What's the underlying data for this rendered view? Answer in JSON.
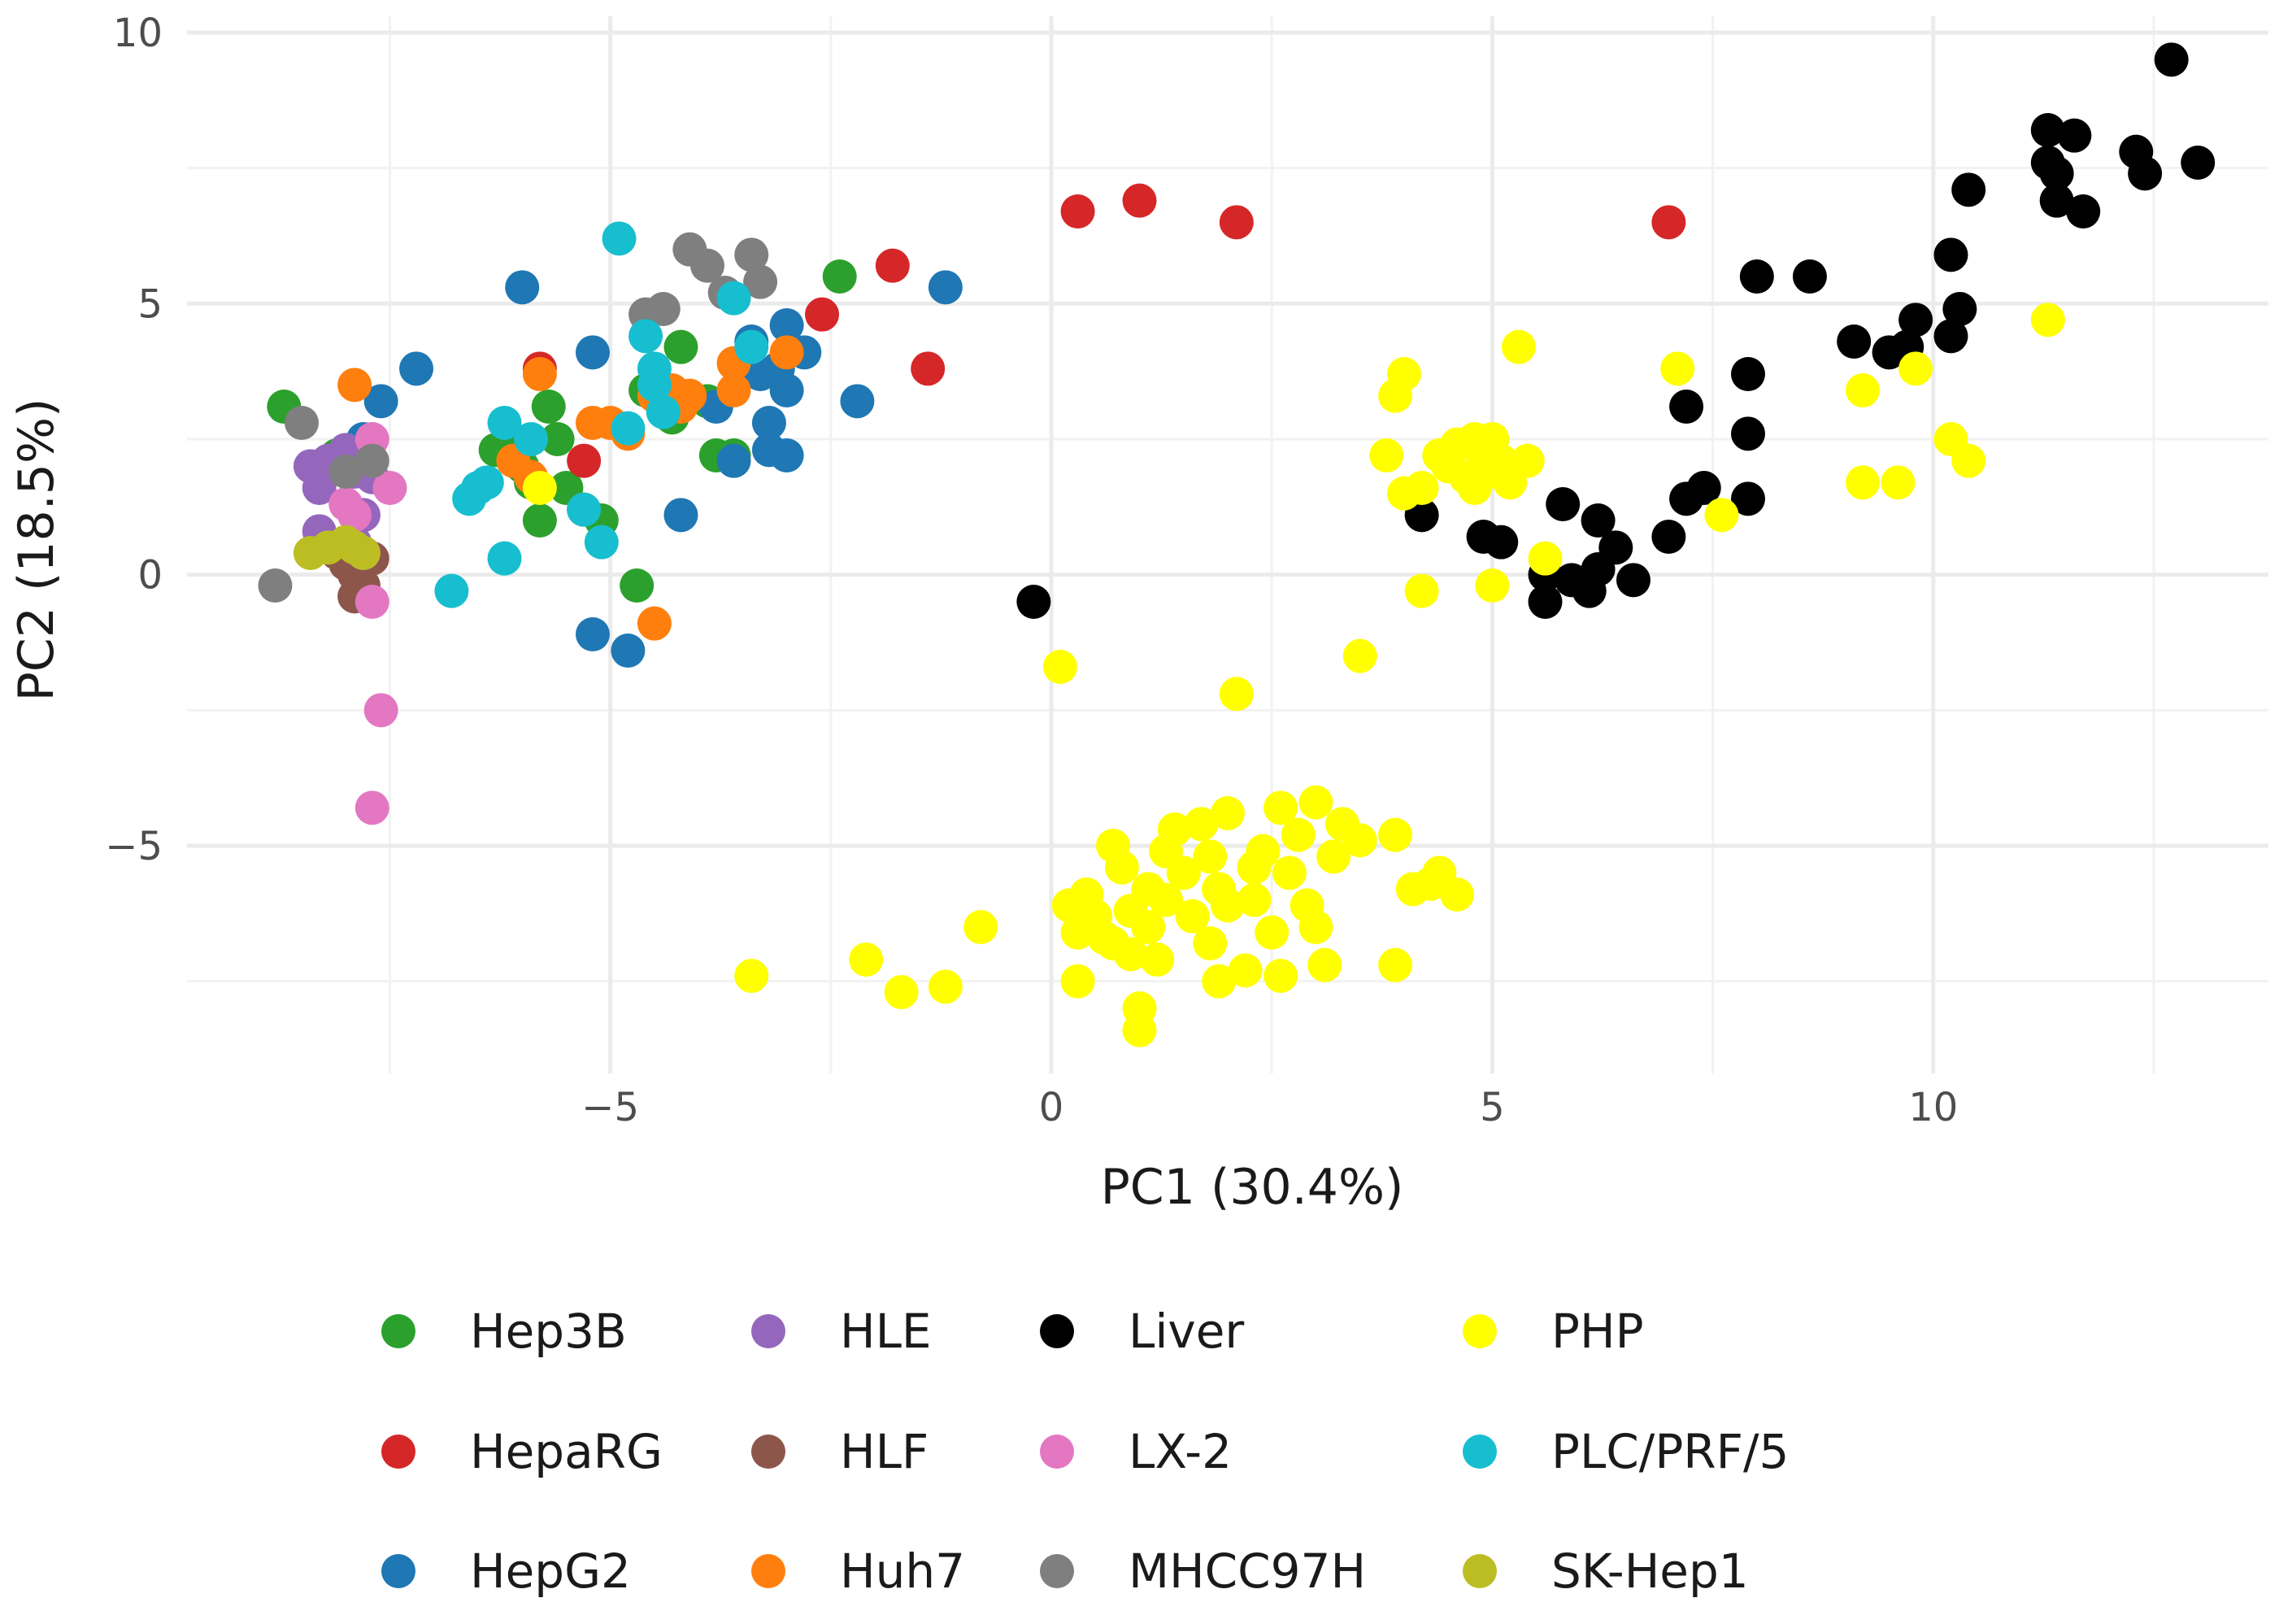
{
  "chart_data": {
    "type": "scatter",
    "title": "",
    "xlabel": "PC1 (30.4%)",
    "ylabel": "PC2 (18.5%)",
    "xlim": [
      -9.8,
      13.8
    ],
    "ylim": [
      -9.2,
      10.3
    ],
    "xticks": [
      -5,
      0,
      5,
      10
    ],
    "xtick_labels": [
      "−5",
      "0",
      "5",
      "10"
    ],
    "yticks": [
      -5,
      0,
      5,
      10
    ],
    "ytick_labels": [
      "−5",
      "0",
      "5",
      "10"
    ],
    "grid": true,
    "legend_position": "bottom",
    "series": [
      {
        "name": "Hep3B",
        "color": "#2ca02c",
        "points": [
          [
            -8.7,
            3.1
          ],
          [
            -8.1,
            2.2
          ],
          [
            -6.3,
            2.3
          ],
          [
            -6.2,
            2.4
          ],
          [
            -6.0,
            2.0
          ],
          [
            -5.9,
            1.7
          ],
          [
            -5.7,
            3.1
          ],
          [
            -5.6,
            2.5
          ],
          [
            -5.5,
            1.6
          ],
          [
            -5.3,
            1.2
          ],
          [
            -5.1,
            1.0
          ],
          [
            -5.8,
            1.0
          ],
          [
            -4.7,
            -0.2
          ],
          [
            -4.6,
            3.4
          ],
          [
            -4.3,
            2.9
          ],
          [
            -4.2,
            4.2
          ],
          [
            -3.9,
            3.2
          ],
          [
            -3.8,
            2.2
          ],
          [
            -3.6,
            2.2
          ],
          [
            -3.5,
            3.8
          ],
          [
            -2.4,
            5.5
          ]
        ]
      },
      {
        "name": "HepaRG",
        "color": "#d62728",
        "points": [
          [
            -5.8,
            3.8
          ],
          [
            -5.3,
            2.1
          ],
          [
            -2.6,
            4.8
          ],
          [
            -1.8,
            5.7
          ],
          [
            -1.4,
            3.8
          ],
          [
            0.3,
            6.7
          ],
          [
            1.0,
            6.9
          ],
          [
            2.1,
            6.5
          ],
          [
            7.0,
            6.5
          ]
        ]
      },
      {
        "name": "HepG2",
        "color": "#1f77b4",
        "points": [
          [
            -7.8,
            2.5
          ],
          [
            -7.6,
            3.2
          ],
          [
            -7.2,
            3.8
          ],
          [
            -6.0,
            5.3
          ],
          [
            -5.2,
            4.1
          ],
          [
            -5.2,
            -1.1
          ],
          [
            -4.8,
            -1.4
          ],
          [
            -4.3,
            3.1
          ],
          [
            -4.2,
            1.1
          ],
          [
            -3.8,
            3.1
          ],
          [
            -3.6,
            2.1
          ],
          [
            -3.4,
            4.3
          ],
          [
            -3.3,
            3.7
          ],
          [
            -3.2,
            2.8
          ],
          [
            -3.2,
            2.3
          ],
          [
            -3.1,
            3.8
          ],
          [
            -3.0,
            4.6
          ],
          [
            -3.0,
            3.4
          ],
          [
            -3.0,
            2.2
          ],
          [
            -2.8,
            4.1
          ],
          [
            -2.2,
            3.2
          ],
          [
            -1.2,
            5.3
          ]
        ]
      },
      {
        "name": "HLE",
        "color": "#9467bd",
        "points": [
          [
            -8.4,
            2.0
          ],
          [
            -8.3,
            1.6
          ],
          [
            -8.2,
            2.1
          ],
          [
            -8.0,
            2.3
          ],
          [
            -7.9,
            1.9
          ],
          [
            -7.8,
            2.2
          ],
          [
            -7.7,
            1.8
          ],
          [
            -7.8,
            1.1
          ],
          [
            -8.3,
            0.8
          ],
          [
            -7.9,
            0.6
          ]
        ]
      },
      {
        "name": "HLF",
        "color": "#8c564b",
        "points": [
          [
            -8.1,
            0.4
          ],
          [
            -8.0,
            0.2
          ],
          [
            -7.9,
            0.0
          ],
          [
            -7.8,
            -0.2
          ],
          [
            -7.9,
            -0.4
          ],
          [
            -8.0,
            0.6
          ],
          [
            -7.7,
            0.3
          ]
        ]
      },
      {
        "name": "Huh7",
        "color": "#ff7f0e",
        "points": [
          [
            -7.9,
            3.5
          ],
          [
            -6.1,
            2.1
          ],
          [
            -5.9,
            1.8
          ],
          [
            -5.8,
            3.7
          ],
          [
            -5.2,
            2.8
          ],
          [
            -5.0,
            2.8
          ],
          [
            -4.8,
            2.6
          ],
          [
            -4.5,
            3.3
          ],
          [
            -4.3,
            3.4
          ],
          [
            -4.2,
            3.1
          ],
          [
            -4.1,
            3.3
          ],
          [
            -3.6,
            3.4
          ],
          [
            -3.6,
            3.9
          ],
          [
            -3.0,
            4.1
          ],
          [
            -4.5,
            -0.9
          ]
        ]
      },
      {
        "name": "Liver",
        "color": "#000000",
        "points": [
          [
            -0.2,
            -0.5
          ],
          [
            4.2,
            1.1
          ],
          [
            4.9,
            0.7
          ],
          [
            5.1,
            0.6
          ],
          [
            5.6,
            0.0
          ],
          [
            5.6,
            -0.5
          ],
          [
            5.8,
            1.3
          ],
          [
            5.9,
            -0.1
          ],
          [
            6.1,
            -0.3
          ],
          [
            6.2,
            0.1
          ],
          [
            6.2,
            1.0
          ],
          [
            6.4,
            0.5
          ],
          [
            6.6,
            -0.1
          ],
          [
            7.0,
            0.7
          ],
          [
            7.2,
            1.4
          ],
          [
            7.2,
            3.1
          ],
          [
            7.4,
            1.6
          ],
          [
            7.9,
            3.7
          ],
          [
            7.9,
            2.6
          ],
          [
            7.9,
            1.4
          ],
          [
            8.0,
            5.5
          ],
          [
            8.6,
            5.5
          ],
          [
            9.1,
            4.3
          ],
          [
            9.5,
            4.1
          ],
          [
            9.8,
            4.7
          ],
          [
            9.7,
            4.2
          ],
          [
            10.2,
            4.4
          ],
          [
            10.2,
            5.9
          ],
          [
            10.3,
            4.9
          ],
          [
            10.4,
            7.1
          ],
          [
            11.3,
            7.6
          ],
          [
            11.3,
            8.2
          ],
          [
            11.4,
            7.4
          ],
          [
            11.4,
            6.9
          ],
          [
            11.6,
            8.1
          ],
          [
            11.7,
            6.7
          ],
          [
            12.3,
            7.8
          ],
          [
            12.4,
            7.4
          ],
          [
            12.7,
            9.5
          ],
          [
            13.0,
            7.6
          ]
        ]
      },
      {
        "name": "LX-2",
        "color": "#e377c2",
        "points": [
          [
            -7.7,
            2.5
          ],
          [
            -7.5,
            1.6
          ],
          [
            -8.0,
            1.3
          ],
          [
            -7.9,
            1.1
          ],
          [
            -7.8,
            0.4
          ],
          [
            -7.7,
            -0.5
          ],
          [
            -7.6,
            -2.5
          ],
          [
            -7.7,
            -4.3
          ]
        ]
      },
      {
        "name": "MHCC97H",
        "color": "#7f7f7f",
        "points": [
          [
            -8.8,
            -0.2
          ],
          [
            -8.5,
            2.8
          ],
          [
            -8.0,
            1.9
          ],
          [
            -7.7,
            2.1
          ],
          [
            -4.6,
            4.8
          ],
          [
            -4.4,
            4.9
          ],
          [
            -4.1,
            6.0
          ],
          [
            -3.9,
            5.7
          ],
          [
            -3.7,
            5.2
          ],
          [
            -3.4,
            5.9
          ],
          [
            -3.3,
            5.4
          ]
        ]
      },
      {
        "name": "PHP",
        "color": "#ffff00",
        "points": [
          [
            -5.8,
            1.6
          ],
          [
            -3.4,
            -7.4
          ],
          [
            -2.1,
            -7.1
          ],
          [
            -1.7,
            -7.7
          ],
          [
            -1.2,
            -7.6
          ],
          [
            -0.8,
            -6.5
          ],
          [
            0.1,
            -1.7
          ],
          [
            0.2,
            -6.1
          ],
          [
            0.3,
            -6.6
          ],
          [
            0.3,
            -7.5
          ],
          [
            0.4,
            -5.9
          ],
          [
            0.5,
            -6.3
          ],
          [
            0.6,
            -6.7
          ],
          [
            0.7,
            -5.0
          ],
          [
            0.7,
            -6.8
          ],
          [
            0.8,
            -5.4
          ],
          [
            0.9,
            -6.2
          ],
          [
            0.9,
            -7.0
          ],
          [
            1.0,
            -8.0
          ],
          [
            1.0,
            -8.4
          ],
          [
            1.1,
            -5.8
          ],
          [
            1.1,
            -6.5
          ],
          [
            1.2,
            -7.1
          ],
          [
            1.3,
            -5.1
          ],
          [
            1.3,
            -6.0
          ],
          [
            1.4,
            -4.7
          ],
          [
            1.5,
            -5.5
          ],
          [
            1.6,
            -6.3
          ],
          [
            1.7,
            -4.6
          ],
          [
            1.8,
            -5.2
          ],
          [
            1.8,
            -6.8
          ],
          [
            1.9,
            -5.8
          ],
          [
            1.9,
            -7.5
          ],
          [
            2.0,
            -4.4
          ],
          [
            2.0,
            -6.1
          ],
          [
            2.1,
            -2.2
          ],
          [
            2.2,
            -7.3
          ],
          [
            2.3,
            -5.4
          ],
          [
            2.3,
            -6.0
          ],
          [
            2.4,
            -5.1
          ],
          [
            2.5,
            -6.6
          ],
          [
            2.6,
            -4.3
          ],
          [
            2.6,
            -7.4
          ],
          [
            2.7,
            -5.5
          ],
          [
            2.8,
            -4.8
          ],
          [
            2.9,
            -6.1
          ],
          [
            3.0,
            -4.2
          ],
          [
            3.0,
            -6.5
          ],
          [
            3.1,
            -7.2
          ],
          [
            3.2,
            -5.2
          ],
          [
            3.3,
            -4.6
          ],
          [
            3.5,
            -4.9
          ],
          [
            3.5,
            -1.5
          ],
          [
            3.9,
            -7.2
          ],
          [
            3.9,
            -4.8
          ],
          [
            4.1,
            -5.8
          ],
          [
            4.3,
            -5.7
          ],
          [
            4.4,
            -5.5
          ],
          [
            4.6,
            -5.9
          ],
          [
            3.8,
            2.2
          ],
          [
            3.9,
            3.3
          ],
          [
            4.0,
            3.7
          ],
          [
            4.0,
            1.5
          ],
          [
            4.2,
            1.6
          ],
          [
            4.2,
            -0.3
          ],
          [
            4.4,
            2.2
          ],
          [
            4.5,
            2.0
          ],
          [
            4.6,
            2.4
          ],
          [
            4.7,
            1.8
          ],
          [
            4.8,
            2.5
          ],
          [
            4.8,
            1.6
          ],
          [
            4.9,
            2.2
          ],
          [
            5.0,
            2.5
          ],
          [
            5.0,
            1.9
          ],
          [
            5.0,
            -0.2
          ],
          [
            5.1,
            2.1
          ],
          [
            5.2,
            1.7
          ],
          [
            5.3,
            4.2
          ],
          [
            5.4,
            2.1
          ],
          [
            5.6,
            0.3
          ],
          [
            7.1,
            3.8
          ],
          [
            7.6,
            1.1
          ],
          [
            9.2,
            3.4
          ],
          [
            9.2,
            1.7
          ],
          [
            9.6,
            1.7
          ],
          [
            9.8,
            3.8
          ],
          [
            10.2,
            2.5
          ],
          [
            10.4,
            2.1
          ],
          [
            11.3,
            4.7
          ]
        ]
      },
      {
        "name": "PLC/PRF/5",
        "color": "#17becf",
        "points": [
          [
            -6.8,
            -0.3
          ],
          [
            -6.6,
            1.4
          ],
          [
            -6.5,
            1.6
          ],
          [
            -6.4,
            1.7
          ],
          [
            -6.2,
            2.8
          ],
          [
            -6.2,
            0.3
          ],
          [
            -5.9,
            2.5
          ],
          [
            -5.3,
            1.2
          ],
          [
            -5.1,
            0.6
          ],
          [
            -4.9,
            6.2
          ],
          [
            -4.8,
            2.7
          ],
          [
            -4.6,
            4.4
          ],
          [
            -4.5,
            3.8
          ],
          [
            -4.5,
            3.5
          ],
          [
            -4.4,
            3.0
          ],
          [
            -3.6,
            5.1
          ],
          [
            -3.4,
            4.2
          ]
        ]
      },
      {
        "name": "SK-Hep1",
        "color": "#bcbd22",
        "points": [
          [
            -8.4,
            0.4
          ],
          [
            -8.2,
            0.5
          ],
          [
            -8.0,
            0.6
          ],
          [
            -7.9,
            0.5
          ],
          [
            -7.8,
            0.4
          ]
        ]
      }
    ]
  }
}
